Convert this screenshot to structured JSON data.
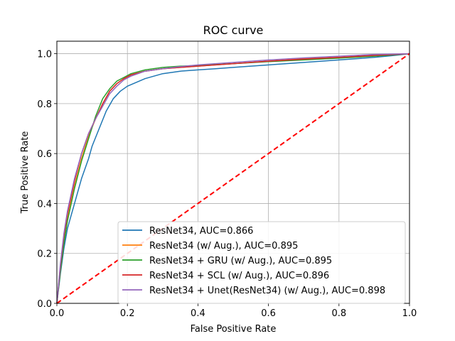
{
  "chart_data": {
    "type": "line",
    "title": "ROC curve",
    "xlabel": "False Positive Rate",
    "ylabel": "True Positive Rate",
    "xlim": [
      0,
      1
    ],
    "ylim": [
      0,
      1.05
    ],
    "xticks": [
      0.0,
      0.2,
      0.4,
      0.6,
      0.8,
      1.0
    ],
    "yticks": [
      0.0,
      0.2,
      0.4,
      0.6,
      0.8,
      1.0
    ],
    "xtick_labels": [
      "0.0",
      "0.2",
      "0.4",
      "0.6",
      "0.8",
      "1.0"
    ],
    "ytick_labels": [
      "0.0",
      "0.2",
      "0.4",
      "0.6",
      "0.8",
      "1.0"
    ],
    "grid": true,
    "legend_position": "lower-right",
    "series": [
      {
        "name": "ResNet34, AUC=0.866",
        "color": "#1f77b4",
        "x": [
          0,
          0.01,
          0.02,
          0.03,
          0.05,
          0.07,
          0.09,
          0.1,
          0.12,
          0.14,
          0.16,
          0.18,
          0.2,
          0.25,
          0.3,
          0.35,
          0.4,
          0.45,
          0.5,
          0.55,
          0.6,
          0.65,
          0.7,
          0.75,
          0.8,
          0.85,
          0.9,
          0.95,
          1.0
        ],
        "y": [
          0,
          0.12,
          0.22,
          0.3,
          0.4,
          0.5,
          0.58,
          0.63,
          0.7,
          0.77,
          0.82,
          0.85,
          0.87,
          0.9,
          0.92,
          0.93,
          0.935,
          0.94,
          0.945,
          0.95,
          0.955,
          0.96,
          0.965,
          0.97,
          0.975,
          0.98,
          0.985,
          0.992,
          1.0
        ]
      },
      {
        "name": "ResNet34 (w/ Aug.), AUC=0.895",
        "color": "#ff7f0e",
        "x": [
          0,
          0.01,
          0.02,
          0.03,
          0.05,
          0.07,
          0.09,
          0.11,
          0.13,
          0.15,
          0.17,
          0.19,
          0.21,
          0.25,
          0.3,
          0.35,
          0.4,
          0.5,
          0.6,
          0.7,
          0.8,
          0.9,
          1.0
        ],
        "y": [
          0,
          0.14,
          0.25,
          0.34,
          0.47,
          0.58,
          0.67,
          0.74,
          0.8,
          0.85,
          0.88,
          0.9,
          0.915,
          0.93,
          0.94,
          0.945,
          0.95,
          0.96,
          0.97,
          0.98,
          0.985,
          0.993,
          1.0
        ]
      },
      {
        "name": "ResNet34 + GRU (w/ Aug.), AUC=0.895",
        "color": "#2ca02c",
        "x": [
          0,
          0.01,
          0.02,
          0.03,
          0.05,
          0.07,
          0.09,
          0.11,
          0.13,
          0.15,
          0.17,
          0.19,
          0.21,
          0.25,
          0.3,
          0.35,
          0.4,
          0.5,
          0.6,
          0.7,
          0.8,
          0.9,
          1.0
        ],
        "y": [
          0,
          0.13,
          0.24,
          0.33,
          0.46,
          0.57,
          0.66,
          0.75,
          0.82,
          0.86,
          0.89,
          0.905,
          0.92,
          0.935,
          0.945,
          0.95,
          0.953,
          0.96,
          0.968,
          0.975,
          0.982,
          0.99,
          1.0
        ]
      },
      {
        "name": "ResNet34 + SCL (w/ Aug.), AUC=0.896",
        "color": "#d62728",
        "x": [
          0,
          0.01,
          0.02,
          0.03,
          0.05,
          0.07,
          0.09,
          0.11,
          0.13,
          0.15,
          0.17,
          0.19,
          0.21,
          0.25,
          0.3,
          0.35,
          0.4,
          0.5,
          0.6,
          0.7,
          0.8,
          0.9,
          1.0
        ],
        "y": [
          0,
          0.15,
          0.27,
          0.36,
          0.49,
          0.6,
          0.68,
          0.74,
          0.8,
          0.85,
          0.88,
          0.9,
          0.915,
          0.93,
          0.94,
          0.945,
          0.95,
          0.96,
          0.97,
          0.978,
          0.985,
          0.993,
          1.0
        ]
      },
      {
        "name": "ResNet34 + Unet(ResNet34) (w/ Aug.), AUC=0.898",
        "color": "#9467bd",
        "x": [
          0,
          0.01,
          0.02,
          0.03,
          0.05,
          0.07,
          0.09,
          0.11,
          0.13,
          0.15,
          0.17,
          0.19,
          0.21,
          0.25,
          0.3,
          0.35,
          0.4,
          0.5,
          0.6,
          0.7,
          0.8,
          0.9,
          1.0
        ],
        "y": [
          0,
          0.16,
          0.28,
          0.37,
          0.5,
          0.6,
          0.68,
          0.74,
          0.79,
          0.84,
          0.87,
          0.895,
          0.91,
          0.93,
          0.94,
          0.948,
          0.955,
          0.965,
          0.975,
          0.983,
          0.99,
          0.997,
          1.0
        ]
      }
    ],
    "reference_line": {
      "x": [
        0,
        1
      ],
      "y": [
        0,
        1
      ],
      "color": "#ff0000",
      "style": "dashed"
    }
  }
}
